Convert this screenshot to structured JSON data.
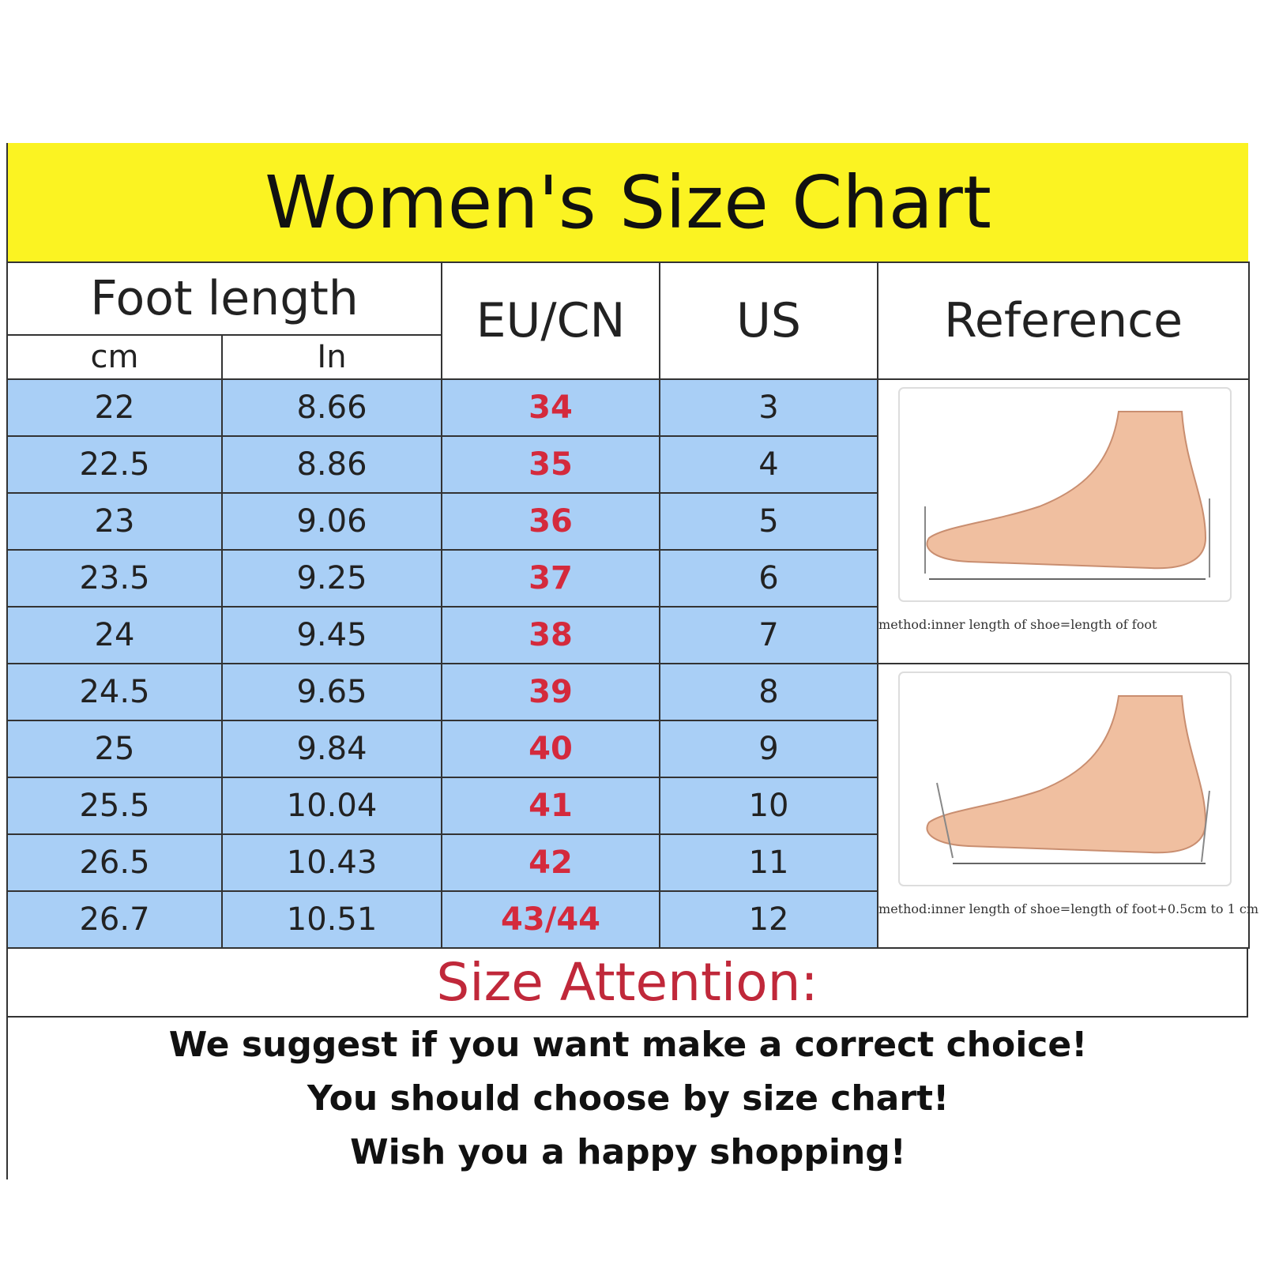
{
  "title": "Women's Size Chart",
  "headers": {
    "foot_length": "Foot length",
    "cm": "cm",
    "in": "In",
    "eu_cn": "EU/CN",
    "us": "US",
    "reference": "Reference"
  },
  "rows": [
    {
      "cm": "22",
      "in": "8.66",
      "eu": "34",
      "us": "3"
    },
    {
      "cm": "22.5",
      "in": "8.86",
      "eu": "35",
      "us": "4"
    },
    {
      "cm": "23",
      "in": "9.06",
      "eu": "36",
      "us": "5"
    },
    {
      "cm": "23.5",
      "in": "9.25",
      "eu": "37",
      "us": "6"
    },
    {
      "cm": "24",
      "in": "9.45",
      "eu": "38",
      "us": "7"
    },
    {
      "cm": "24.5",
      "in": "9.65",
      "eu": "39",
      "us": "8"
    },
    {
      "cm": "25",
      "in": "9.84",
      "eu": "40",
      "us": "9"
    },
    {
      "cm": "25.5",
      "in": "10.04",
      "eu": "41",
      "us": "10"
    },
    {
      "cm": "26.5",
      "in": "10.43",
      "eu": "42",
      "us": "11"
    },
    {
      "cm": "26.7",
      "in": "10.51",
      "eu": "43/44",
      "us": "12"
    }
  ],
  "reference": {
    "caption1": "method:inner length of shoe=length of foot",
    "caption2": "method:inner length of shoe=length of foot+0.5cm to 1 cm"
  },
  "attention": "Size Attention:",
  "messages": [
    "We suggest if you want make a correct choice!",
    "You should choose by size chart!",
    "Wish you a happy shopping!"
  ],
  "colors": {
    "header_yellow": "#fbf322",
    "cell_blue": "#a9cff6",
    "eu_red": "#d42a3c"
  }
}
